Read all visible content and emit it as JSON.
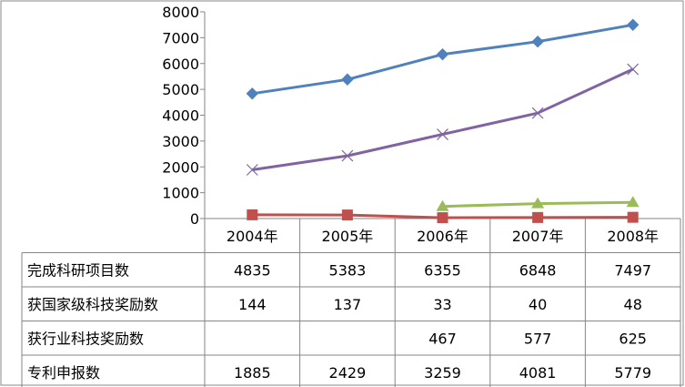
{
  "chart_data": {
    "type": "line",
    "categories": [
      "2004年",
      "2005年",
      "2006年",
      "2007年",
      "2008年"
    ],
    "ylim": [
      0,
      8000
    ],
    "yticks": [
      0,
      1000,
      2000,
      3000,
      4000,
      5000,
      6000,
      7000,
      8000
    ],
    "grid": false,
    "legend": "data-table",
    "series": [
      {
        "name": "完成科研项目数",
        "values": [
          4835,
          5383,
          6355,
          6848,
          7497
        ],
        "color": "#4F81BD",
        "marker": "diamond"
      },
      {
        "name": "获国家级科技奖励数",
        "values": [
          144,
          137,
          33,
          40,
          48
        ],
        "color": "#C0504D",
        "marker": "square"
      },
      {
        "name": "获行业科技奖励数",
        "values": [
          null,
          null,
          467,
          577,
          625
        ],
        "color": "#9BBB59",
        "marker": "triangle"
      },
      {
        "name": "专利申报数",
        "values": [
          1885,
          2429,
          3259,
          4081,
          5779
        ],
        "color": "#8064A2",
        "marker": "x"
      }
    ]
  }
}
